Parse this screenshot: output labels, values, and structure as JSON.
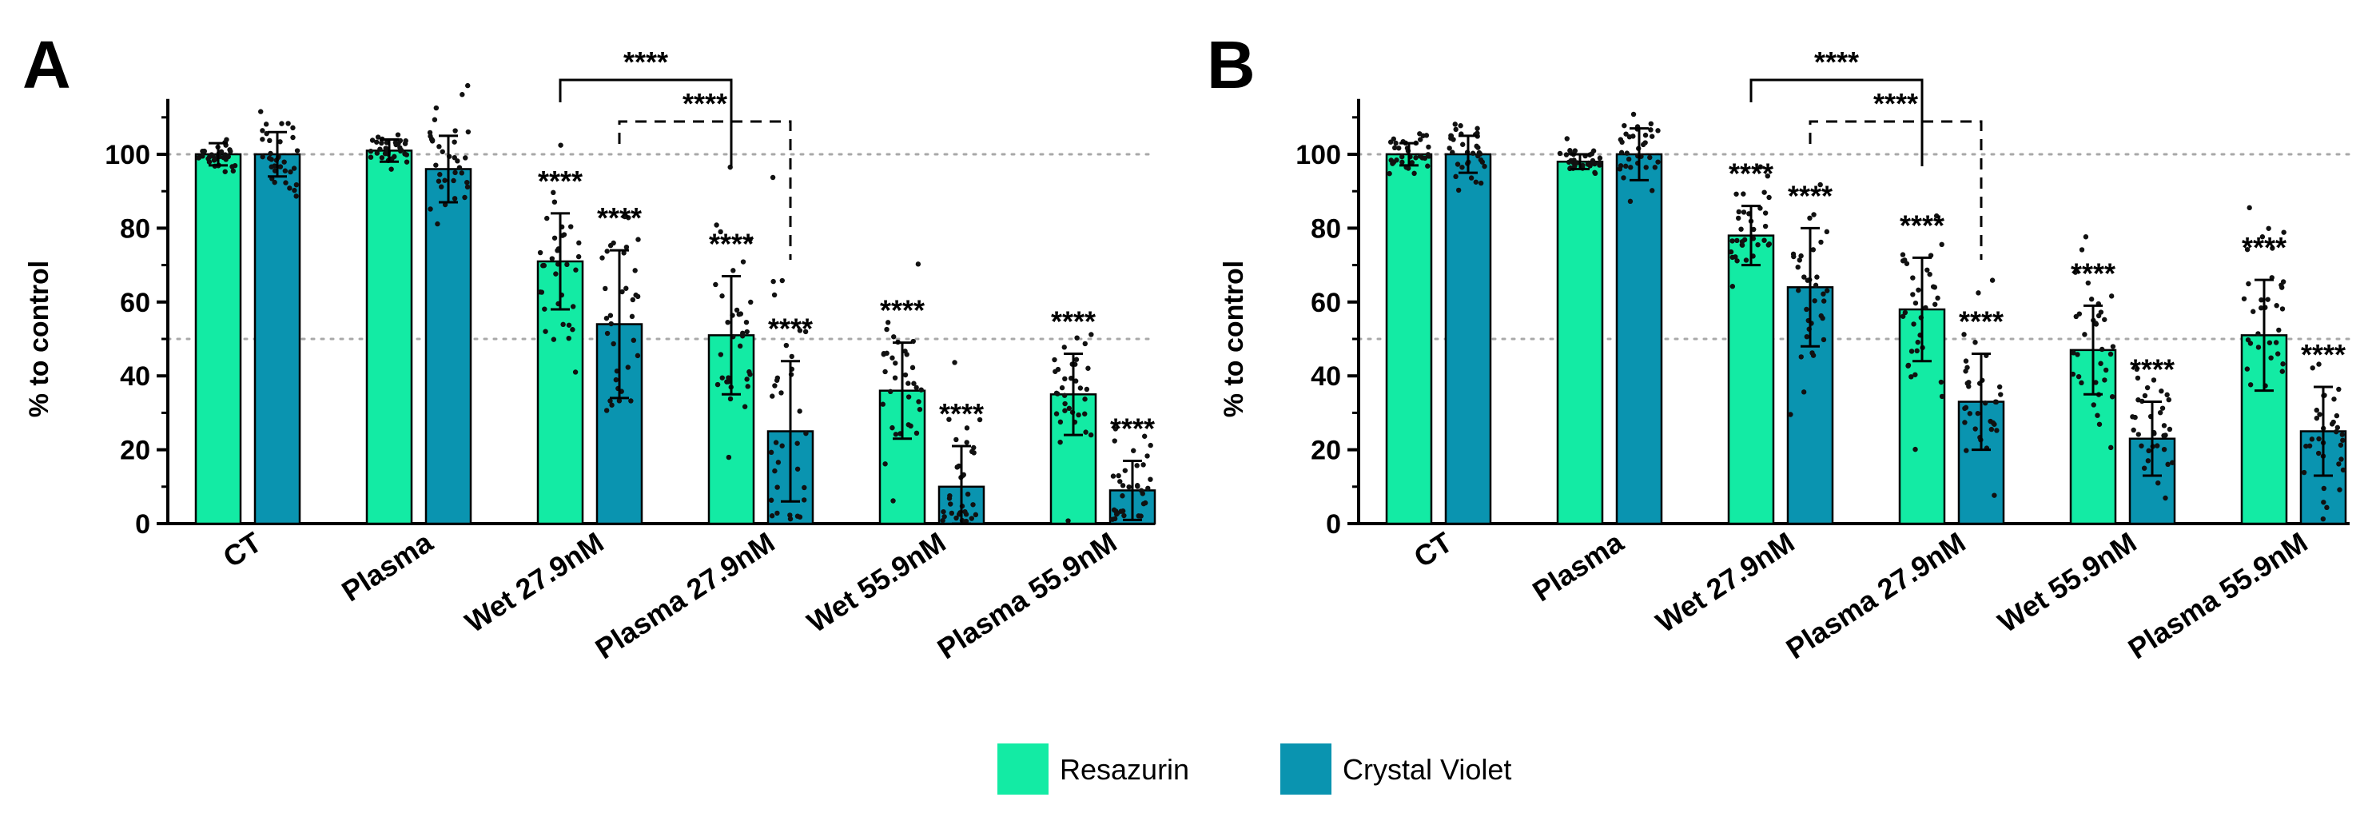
{
  "colors": {
    "resazurin": "#13EBA4",
    "crystal_violet": "#0A94B0",
    "reference_line": "#A8A8A8"
  },
  "legend": [
    {
      "label": "Resazurin",
      "color": "#13EBA4"
    },
    {
      "label": "Crystal Violet",
      "color": "#0A94B0"
    }
  ],
  "chart_data": [
    {
      "type": "bar",
      "panel": "A",
      "ylabel": "% to control",
      "ylim": [
        0,
        115
      ],
      "yticks": [
        0,
        20,
        40,
        60,
        80,
        100
      ],
      "reference_lines": [
        50,
        100
      ],
      "categories": [
        "CT",
        "Plasma",
        "Wet 27.9nM",
        "Plasma 27.9nM",
        "Wet 55.9nM",
        "Plasma 55.9nM"
      ],
      "series": [
        {
          "name": "Resazurin",
          "values": [
            100,
            101,
            71,
            51,
            36,
            35
          ],
          "sd": [
            3,
            3,
            13,
            16,
            13,
            11
          ],
          "significance": [
            "",
            "",
            "****",
            "****",
            "****",
            "****"
          ]
        },
        {
          "name": "Crystal Violet",
          "values": [
            100,
            96,
            54,
            25,
            10,
            9
          ],
          "sd": [
            6,
            9,
            20,
            19,
            11,
            8
          ],
          "significance": [
            "",
            "",
            "****",
            "****",
            "****",
            "****"
          ]
        }
      ],
      "brackets": [
        {
          "from_category": 2,
          "to_category": 3,
          "series": "Resazurin",
          "style": "solid",
          "label": "****"
        },
        {
          "from_category": 2,
          "to_category": 3,
          "series": "Crystal Violet",
          "style": "dashed",
          "label": "****"
        }
      ]
    },
    {
      "type": "bar",
      "panel": "B",
      "ylabel": "% to control",
      "ylim": [
        0,
        115
      ],
      "yticks": [
        0,
        20,
        40,
        60,
        80,
        100
      ],
      "reference_lines": [
        50,
        100
      ],
      "categories": [
        "CT",
        "Plasma",
        "Wet 27.9nM",
        "Plasma 27.9nM",
        "Wet 55.9nM",
        "Plasma 55.9nM"
      ],
      "series": [
        {
          "name": "Resazurin",
          "values": [
            100,
            98,
            78,
            58,
            47,
            51
          ],
          "sd": [
            3,
            2,
            8,
            14,
            12,
            15
          ],
          "significance": [
            "",
            "",
            "****",
            "****",
            "****",
            "****"
          ]
        },
        {
          "name": "Crystal Violet",
          "values": [
            100,
            100,
            64,
            33,
            23,
            25
          ],
          "sd": [
            5,
            7,
            16,
            13,
            10,
            12
          ],
          "significance": [
            "",
            "",
            "****",
            "****",
            "****",
            "****"
          ]
        }
      ],
      "brackets": [
        {
          "from_category": 2,
          "to_category": 3,
          "series": "Resazurin",
          "style": "solid",
          "label": "****"
        },
        {
          "from_category": 2,
          "to_category": 3,
          "series": "Crystal Violet",
          "style": "dashed",
          "label": "****"
        }
      ]
    }
  ]
}
